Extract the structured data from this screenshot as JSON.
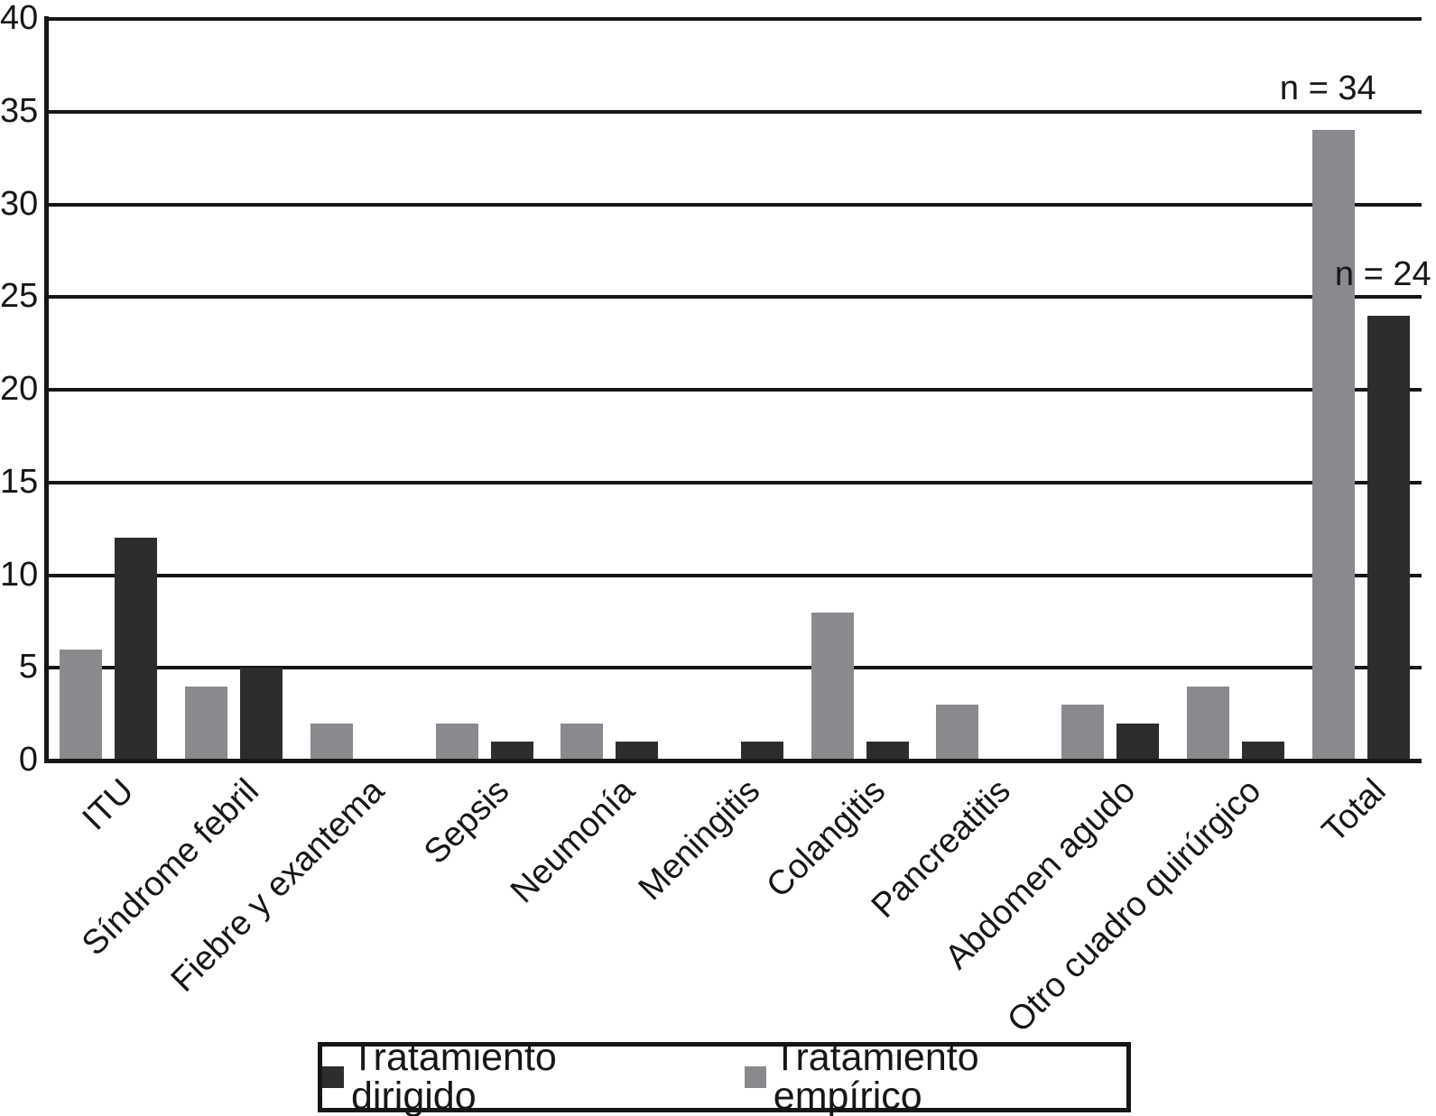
{
  "chart_data": {
    "type": "bar",
    "title": "",
    "xlabel": "",
    "ylabel": "",
    "categories": [
      "ITU",
      "Síndrome febril",
      "Fiebre y exantema",
      "Sepsis",
      "Neumonía",
      "Meningitis",
      "Colangitis",
      "Pancreatitis",
      "Abdomen agudo",
      "Otro cuadro quirúrgico",
      "Total"
    ],
    "series": [
      {
        "name": "Tratamiento empírico",
        "color": "#888a8d",
        "values": [
          6,
          4,
          2,
          2,
          2,
          0,
          8,
          3,
          3,
          4,
          34
        ]
      },
      {
        "name": "Tratamiento dirigido",
        "color": "#2c2d2f",
        "values": [
          12,
          5,
          0,
          1,
          1,
          1,
          1,
          0,
          2,
          1,
          24
        ]
      }
    ],
    "ylim": [
      0,
      40
    ],
    "yticks": [
      0,
      5,
      10,
      15,
      20,
      25,
      30,
      35,
      40
    ],
    "grid": true,
    "legend_position": "bottom-center",
    "annotations": [
      {
        "text": "n = 34",
        "series": "Tratamiento empírico",
        "category": "Total"
      },
      {
        "text": "n = 24",
        "series": "Tratamiento dirigido",
        "category": "Total"
      }
    ]
  },
  "legend": {
    "items": [
      {
        "label": "Tratamiento dirigido",
        "color": "#2c2d2f"
      },
      {
        "label": "Tratamiento empírico",
        "color": "#888a8d"
      }
    ]
  },
  "colors": {
    "axis": "#161616",
    "text": "#161616",
    "background": "#ffffff"
  }
}
